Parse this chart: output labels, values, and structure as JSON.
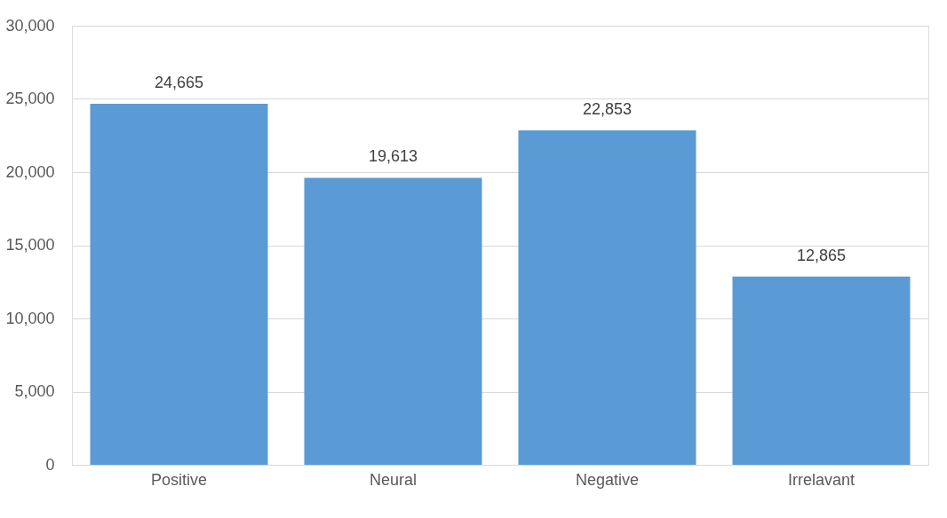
{
  "chart_data": {
    "type": "bar",
    "categories": [
      "Positive",
      "Neural",
      "Negative",
      "Irrelavant"
    ],
    "values": [
      24665,
      19613,
      22853,
      12865
    ],
    "value_labels": [
      "24,665",
      "19,613",
      "22,853",
      "12,865"
    ],
    "color": "#5b9bd5",
    "ylim": [
      0,
      30000
    ],
    "yticks": [
      {
        "value": 0,
        "label": "0"
      },
      {
        "value": 5000,
        "label": "5,000"
      },
      {
        "value": 10000,
        "label": "10,000"
      },
      {
        "value": 15000,
        "label": "15,000"
      },
      {
        "value": 20000,
        "label": "20,000"
      },
      {
        "value": 25000,
        "label": "25,000"
      },
      {
        "value": 30000,
        "label": "30,000"
      }
    ],
    "grid": "y"
  }
}
